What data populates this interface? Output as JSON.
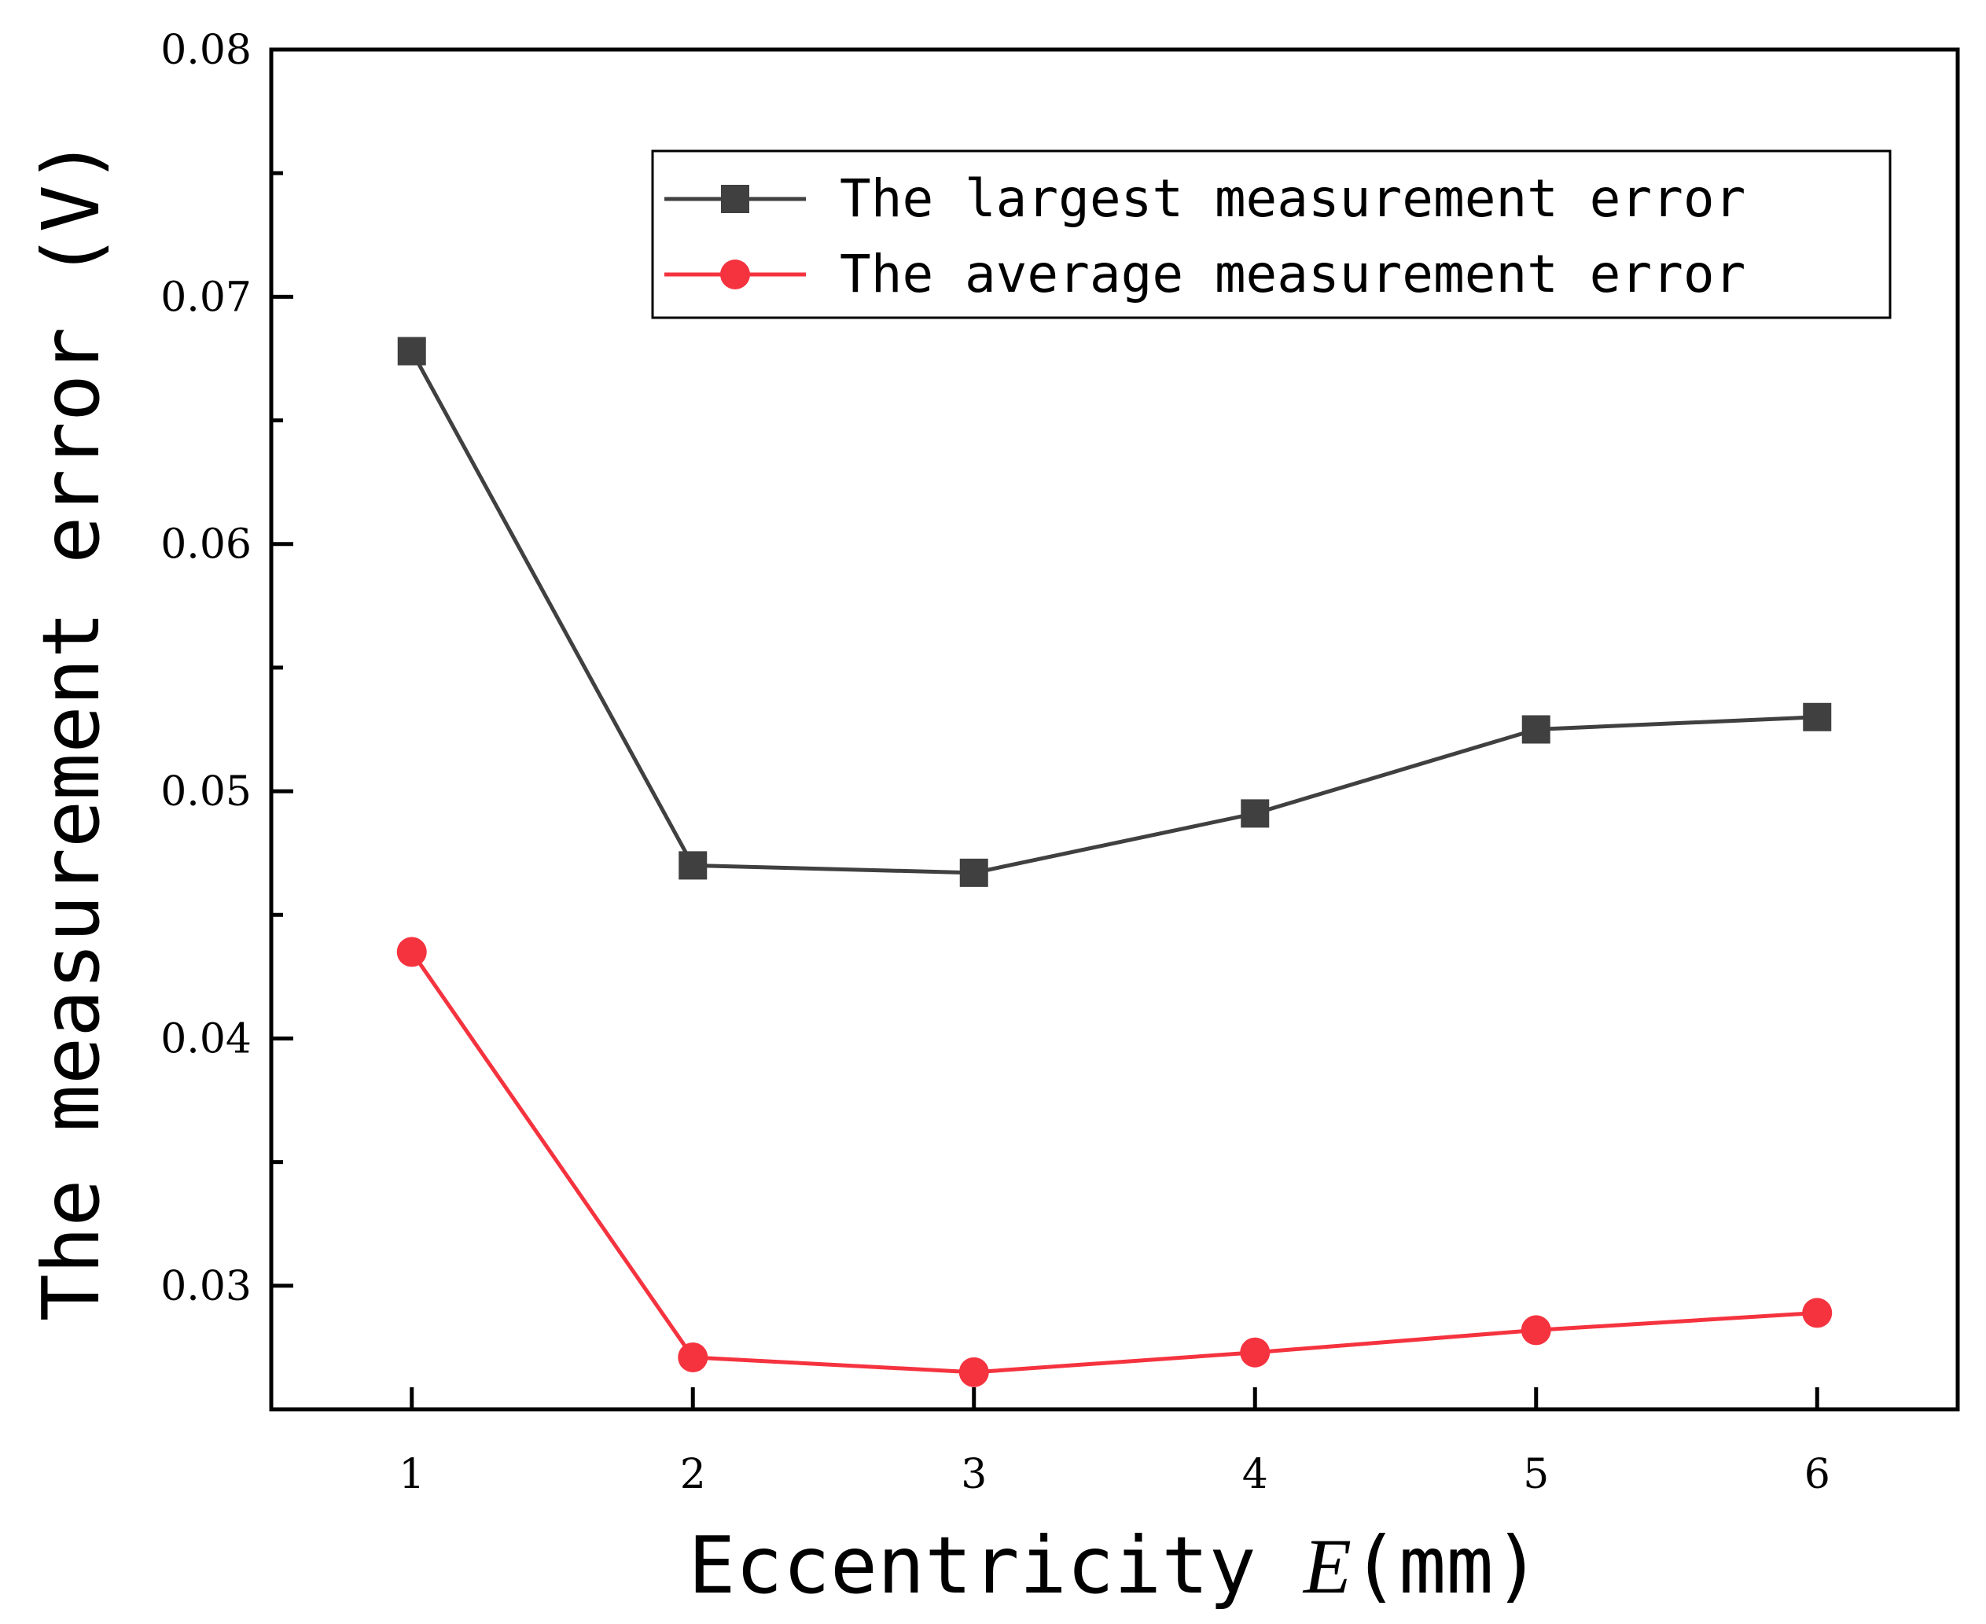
{
  "chart_data": {
    "type": "line",
    "title": "",
    "xlabel_prefix": "Eccentricity ",
    "xlabel_var": "E",
    "xlabel_unit": "(mm)",
    "ylabel": "The measurement error  (V)",
    "x": [
      1,
      2,
      3,
      4,
      5,
      6
    ],
    "xlim": [
      0.5,
      6.5
    ],
    "ylim": [
      0.025,
      0.08
    ],
    "xticks": [
      "1",
      "2",
      "3",
      "4",
      "5",
      "6"
    ],
    "yticks": [
      "0.03",
      "0.04",
      "0.05",
      "0.06",
      "0.07",
      "0.08"
    ],
    "legend_position": "top-right",
    "grid": false,
    "series": [
      {
        "name": "The largest measurement error",
        "color": "#404040",
        "marker": "square",
        "values": [
          0.0678,
          0.047,
          0.0467,
          0.0491,
          0.0525,
          0.053
        ]
      },
      {
        "name": "The average measurement error",
        "color": "#f5333f",
        "marker": "circle",
        "values": [
          0.0435,
          0.0271,
          0.0265,
          0.0273,
          0.0282,
          0.0289
        ]
      }
    ]
  }
}
